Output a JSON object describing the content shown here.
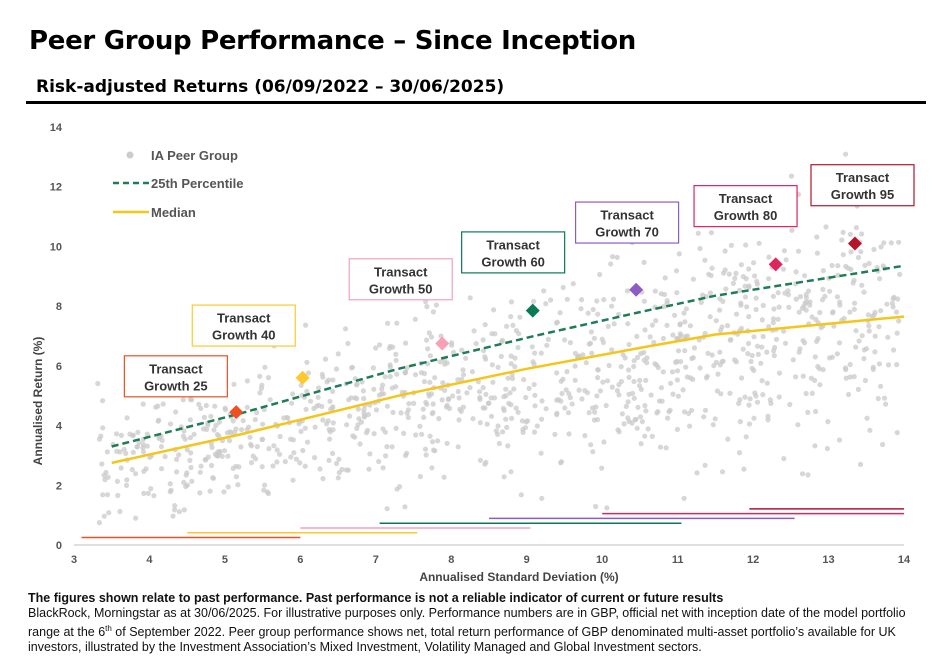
{
  "header": {
    "title": "Peer Group Performance – Since Inception",
    "subtitle": "Risk-adjusted Returns (06/09/2022 – 30/06/2025)"
  },
  "chart_data": {
    "type": "scatter",
    "xlabel": "Annualised Standard Deviation (%)",
    "ylabel": "Annualised Return (%)",
    "xlim": [
      3,
      14
    ],
    "ylim": [
      0,
      14
    ],
    "xticks": [
      "3",
      "4",
      "5",
      "6",
      "7",
      "8",
      "9",
      "10",
      "11",
      "12",
      "13",
      "14"
    ],
    "yticks": [
      "0",
      "2",
      "4",
      "6",
      "8",
      "10",
      "12",
      "14"
    ],
    "grid": false,
    "legend": {
      "placement": "top-left",
      "entries": [
        {
          "label": "IA Peer Group",
          "color": "#cccccc"
        },
        {
          "label": "25th Percentile",
          "color": "#1e7d55"
        },
        {
          "label": "Median",
          "color": "#f5c518"
        }
      ]
    },
    "percentile_25": [
      [
        3.5,
        3.3
      ],
      [
        5.2,
        4.4
      ],
      [
        7.3,
        5.9
      ],
      [
        9.1,
        7.0
      ],
      [
        10.5,
        7.8
      ],
      [
        11.5,
        8.35
      ],
      [
        14.0,
        9.35
      ]
    ],
    "median": [
      [
        3.5,
        2.75
      ],
      [
        5.2,
        3.7
      ],
      [
        7.3,
        5.0
      ],
      [
        9.0,
        5.9
      ],
      [
        10.5,
        6.6
      ],
      [
        11.5,
        7.05
      ],
      [
        14.0,
        7.65
      ]
    ],
    "portfolios": [
      {
        "label_line1": "Transact",
        "label_line2": "Growth 25",
        "x": 5.15,
        "y": 4.45,
        "color": "#f04e23",
        "range": [
          3.1,
          6.0
        ],
        "label_x": 4.35,
        "label_y": 5.65
      },
      {
        "label_line1": "Transact",
        "label_line2": "Growth 40",
        "x": 6.03,
        "y": 5.6,
        "color": "#ffc82c",
        "range": [
          4.5,
          7.55
        ],
        "label_x": 5.25,
        "label_y": 7.35
      },
      {
        "label_line1": "Transact",
        "label_line2": "Growth 50",
        "x": 7.88,
        "y": 6.75,
        "color": "#f7a1b8",
        "range": [
          6.0,
          9.05
        ],
        "label_x": 7.33,
        "label_y": 8.9
      },
      {
        "label_line1": "Transact",
        "label_line2": "Growth 60",
        "x": 9.08,
        "y": 7.85,
        "color": "#0a7a53",
        "range": [
          7.05,
          11.05
        ],
        "label_x": 8.82,
        "label_y": 9.8
      },
      {
        "label_line1": "Transact",
        "label_line2": "Growth 70",
        "x": 10.45,
        "y": 8.55,
        "color": "#8e5cc0",
        "range": [
          8.5,
          12.55
        ],
        "label_x": 10.33,
        "label_y": 10.8
      },
      {
        "label_line1": "Transact",
        "label_line2": "Growth 80",
        "x": 12.3,
        "y": 9.4,
        "color": "#e0245e",
        "range": [
          10.0,
          14.0
        ],
        "label_x": 11.9,
        "label_y": 11.35
      },
      {
        "label_line1": "Transact",
        "label_line2": "Growth 95",
        "x": 13.35,
        "y": 10.1,
        "color": "#b5152b",
        "range": [
          11.95,
          14.0
        ],
        "label_x": 13.45,
        "label_y": 12.05
      }
    ]
  },
  "footer": {
    "disclaimer_bold": "The figures shown relate to past performance. Past performance is not a reliable indicator of current or future results",
    "note_part1": "BlackRock, Morningstar as at 30/06/2025. For illustrative purposes only. Performance numbers are in GBP, official net with inception date of the model portfolio range at the 6",
    "note_sup": "th",
    "note_part2": " of September 2022. Peer group performance shows net, total return performance of GBP denominated multi-asset portfolio’s available for UK investors, illustrated by the Investment Association’s Mixed Investment, Volatility Managed and Global Investment sectors."
  }
}
